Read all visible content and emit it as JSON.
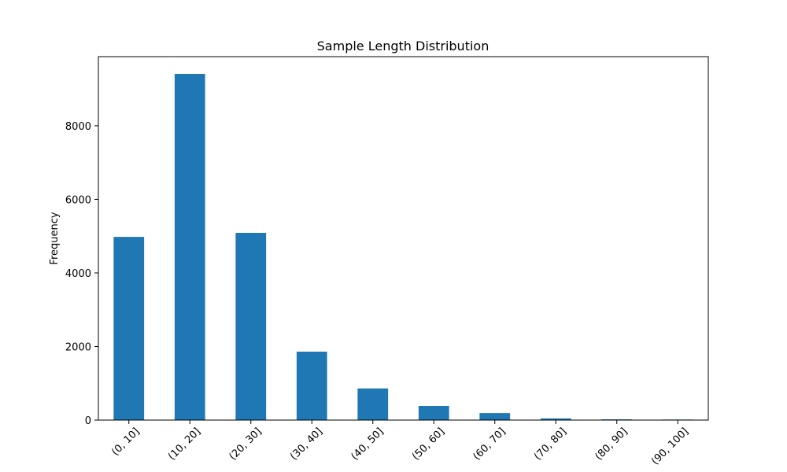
{
  "chart_data": {
    "type": "bar",
    "title": "Sample Length Distribution",
    "xlabel": "",
    "ylabel": "Frequency",
    "categories": [
      "(0, 10]",
      "(10, 20]",
      "(20, 30]",
      "(30, 40]",
      "(40, 50]",
      "(50, 60]",
      "(60, 70]",
      "(70, 80]",
      "(80, 90]",
      "(90, 100]"
    ],
    "values": [
      4980,
      9410,
      5090,
      1860,
      860,
      385,
      190,
      45,
      20,
      15
    ],
    "ylim": [
      0,
      9880
    ],
    "yticks": [
      0,
      2000,
      4000,
      6000,
      8000
    ],
    "grid": false,
    "bar_color": "#1f77b4"
  }
}
